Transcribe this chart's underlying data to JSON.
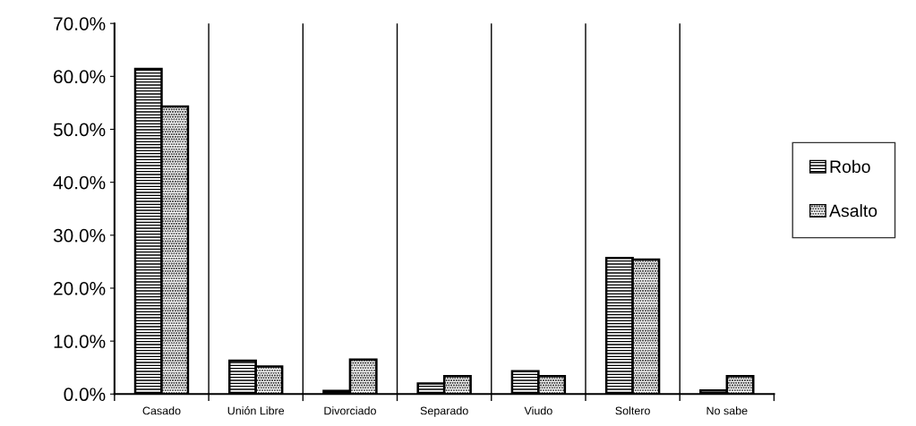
{
  "chart_data": {
    "type": "bar",
    "categories": [
      "Casado",
      "Unión Libre",
      "Divorciado",
      "Separado",
      "Viudo",
      "Soltero",
      "No sabe"
    ],
    "series": [
      {
        "name": "Robo",
        "color": "#000000",
        "values": [
          61.4,
          6.3,
          0.6,
          2.0,
          4.3,
          25.7,
          0.7
        ]
      },
      {
        "name": "Asalto",
        "color": "#000000",
        "values": [
          54.3,
          5.2,
          6.5,
          3.4,
          3.4,
          25.4,
          3.4
        ]
      }
    ],
    "ylim": [
      0,
      70
    ],
    "yticks": [
      {
        "value": 0,
        "label": "0.0%"
      },
      {
        "value": 10,
        "label": "10.0%"
      },
      {
        "value": 20,
        "label": "20.0%"
      },
      {
        "value": 30,
        "label": "30.0%"
      },
      {
        "value": 40,
        "label": "40.0%"
      },
      {
        "value": 50,
        "label": "50.0%"
      },
      {
        "value": 60,
        "label": "60.0%"
      },
      {
        "value": 70,
        "label": "70.0%"
      }
    ],
    "grid": "x",
    "legend": "right"
  }
}
